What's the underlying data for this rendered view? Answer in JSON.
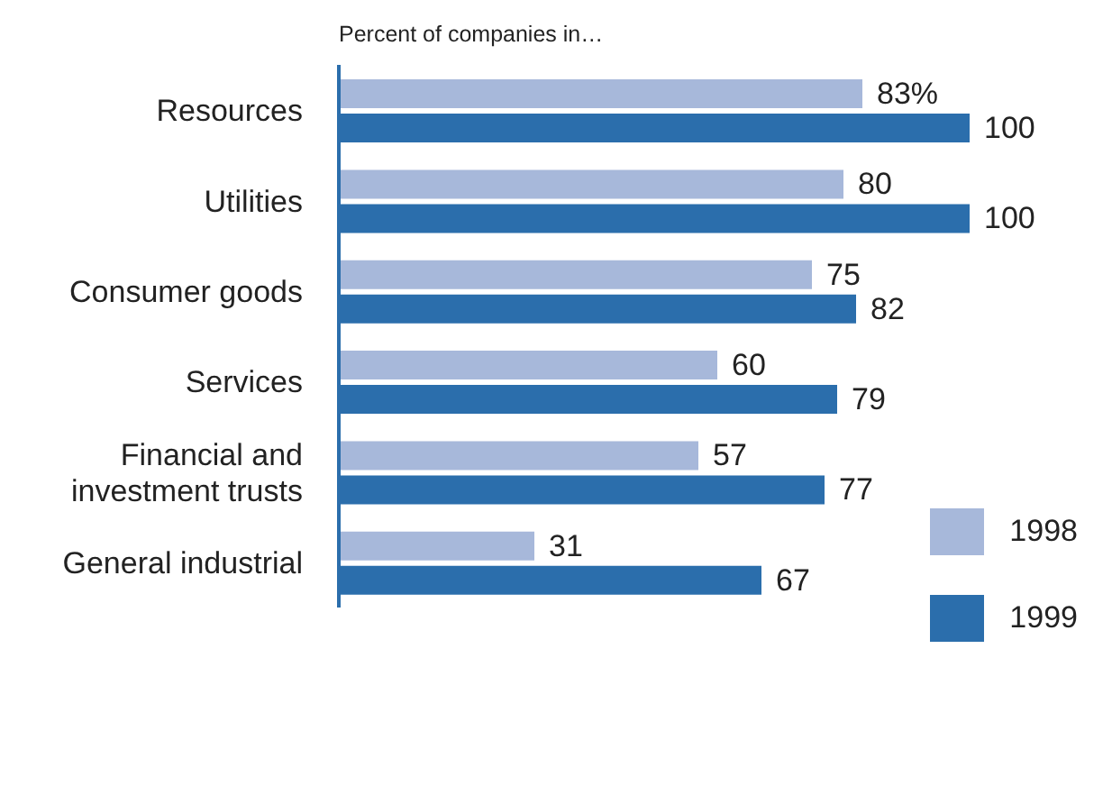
{
  "chart_data": {
    "type": "bar",
    "orientation": "horizontal",
    "subtitle": "Percent of companies in…",
    "categories": [
      "Resources",
      "Utilities",
      "Consumer goods",
      "Services",
      "Financial and investment trusts",
      "General industrial"
    ],
    "series": [
      {
        "name": "1998",
        "color": "#a7b8da",
        "values": [
          83,
          80,
          75,
          60,
          57,
          31
        ],
        "value_labels": [
          "83%",
          "80",
          "75",
          "60",
          "57",
          "31"
        ]
      },
      {
        "name": "1999",
        "color": "#2b6eac",
        "values": [
          100,
          100,
          82,
          79,
          77,
          67
        ],
        "value_labels": [
          "100",
          "100",
          "82",
          "79",
          "77",
          "67"
        ]
      }
    ],
    "legend": "bottom right",
    "grid": false
  }
}
